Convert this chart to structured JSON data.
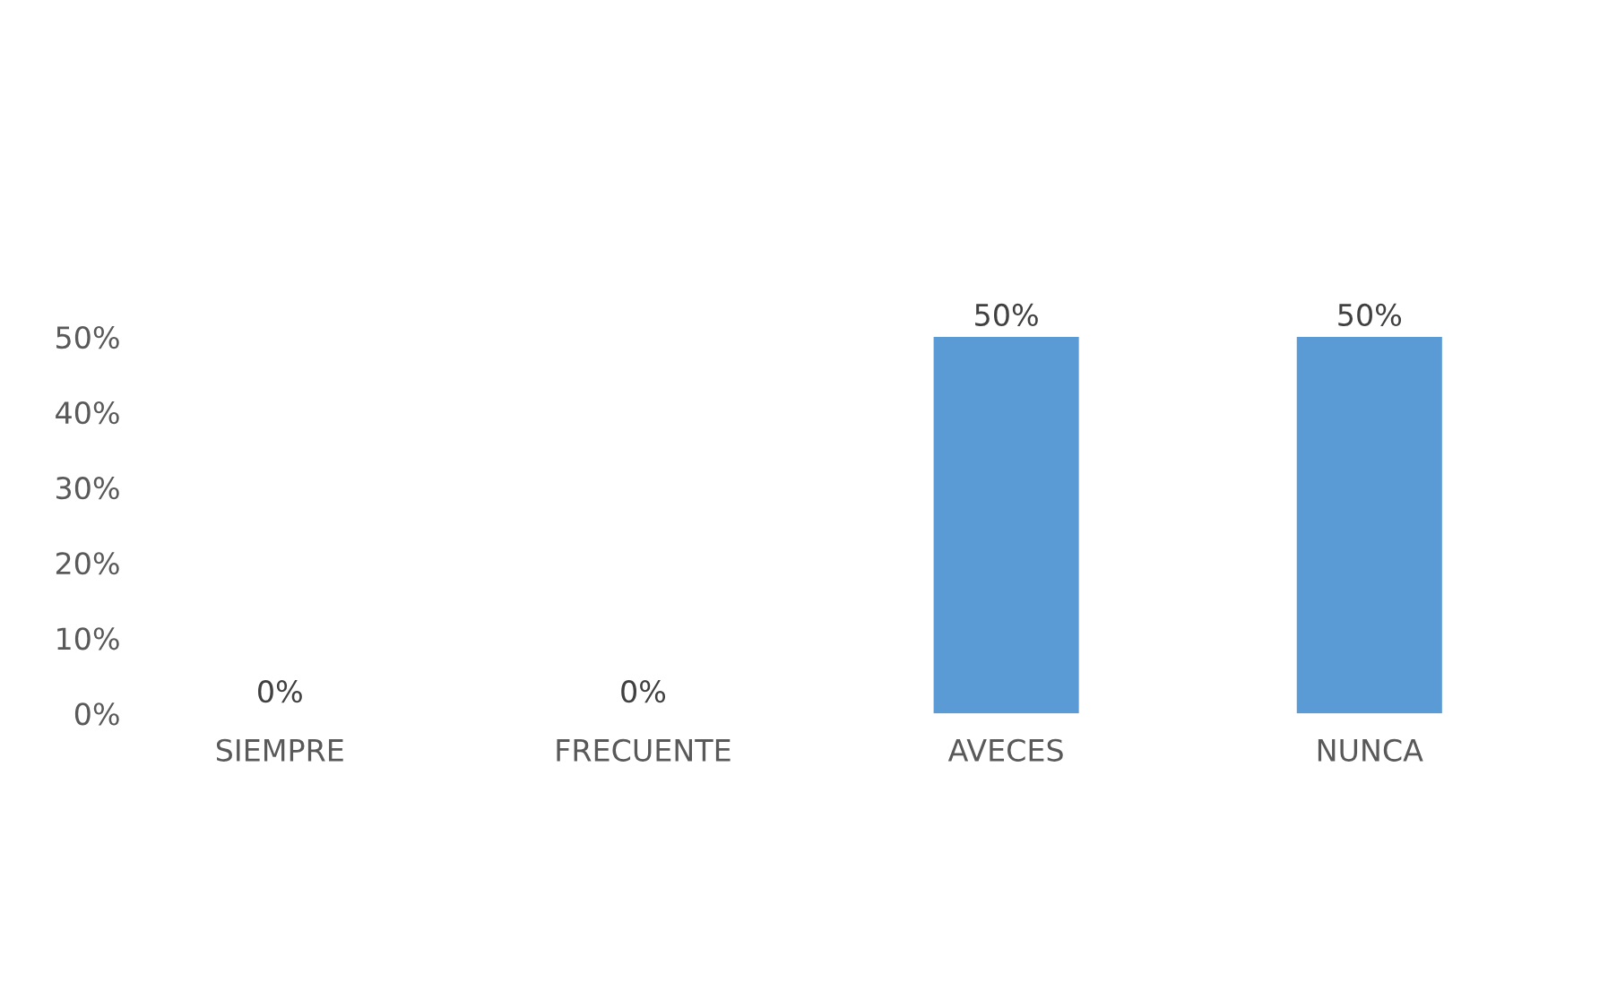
{
  "chart_data": {
    "type": "bar",
    "categories": [
      "SIEMPRE",
      "FRECUENTE",
      "AVECES",
      "NUNCA"
    ],
    "values": [
      0,
      0,
      50,
      50
    ],
    "value_labels": [
      "0%",
      "0%",
      "50%",
      "50%"
    ],
    "color": "#5b9bd5",
    "ylim": [
      0,
      50
    ],
    "yticks": [
      {
        "value": 0,
        "label": "0%"
      },
      {
        "value": 10,
        "label": "10%"
      },
      {
        "value": 20,
        "label": "20%"
      },
      {
        "value": 30,
        "label": "30%"
      },
      {
        "value": 40,
        "label": "40%"
      },
      {
        "value": 50,
        "label": "50%"
      }
    ],
    "grid": false,
    "legend": false
  }
}
